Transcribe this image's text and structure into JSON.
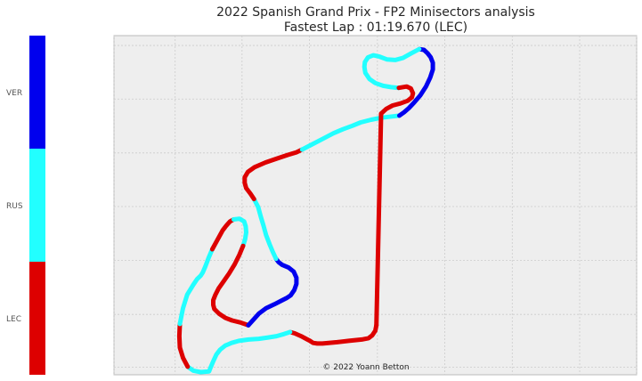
{
  "chart_data": {
    "type": "line",
    "title": "2022 Spanish Grand Prix - FP2 Minisectors analysis",
    "subtitle": "Fastest Lap : 01:19.670 (LEC)",
    "annotation": "© 2022 Yoann Betton",
    "grid": true,
    "legend_placement": "left colorbar",
    "colors": {
      "VER": "#0000ee",
      "RUS": "#22ffff",
      "LEC": "#dd0000",
      "plot_background": "#eeeeee",
      "grid": "#cccccc"
    },
    "legend": [
      {
        "driver": "VER",
        "color": "#0000ee"
      },
      {
        "driver": "RUS",
        "color": "#22ffff"
      },
      {
        "driver": "LEC",
        "color": "#dd0000"
      }
    ],
    "xlim": [
      0,
      1
    ],
    "ylim": [
      0,
      1
    ],
    "track_segments": [
      {
        "driver": "LEC",
        "points": [
          [
            0.502,
            0.146
          ],
          [
            0.5,
            0.13
          ],
          [
            0.494,
            0.116
          ],
          [
            0.487,
            0.108
          ],
          [
            0.474,
            0.104
          ],
          [
            0.449,
            0.1
          ],
          [
            0.427,
            0.096
          ],
          [
            0.399,
            0.092
          ],
          [
            0.389,
            0.092
          ],
          [
            0.381,
            0.094
          ],
          [
            0.375,
            0.1
          ],
          [
            0.37,
            0.104
          ],
          [
            0.358,
            0.114
          ],
          [
            0.346,
            0.122
          ],
          [
            0.337,
            0.126
          ]
        ]
      },
      {
        "driver": "RUS",
        "points": [
          [
            0.337,
            0.126
          ],
          [
            0.325,
            0.12
          ],
          [
            0.311,
            0.114
          ],
          [
            0.295,
            0.11
          ],
          [
            0.277,
            0.106
          ],
          [
            0.258,
            0.104
          ],
          [
            0.239,
            0.1
          ],
          [
            0.225,
            0.094
          ],
          [
            0.213,
            0.086
          ],
          [
            0.203,
            0.074
          ],
          [
            0.196,
            0.06
          ],
          [
            0.19,
            0.04
          ],
          [
            0.185,
            0.022
          ],
          [
            0.182,
            0.01
          ],
          [
            0.166,
            0.008
          ],
          [
            0.152,
            0.012
          ],
          [
            0.141,
            0.024
          ]
        ]
      },
      {
        "driver": "LEC",
        "points": [
          [
            0.141,
            0.024
          ],
          [
            0.132,
            0.05
          ],
          [
            0.126,
            0.08
          ],
          [
            0.125,
            0.114
          ],
          [
            0.126,
            0.15
          ]
        ]
      },
      {
        "driver": "RUS",
        "points": [
          [
            0.126,
            0.15
          ],
          [
            0.132,
            0.196
          ],
          [
            0.14,
            0.236
          ],
          [
            0.152,
            0.266
          ],
          [
            0.159,
            0.282
          ],
          [
            0.166,
            0.292
          ],
          [
            0.17,
            0.302
          ],
          [
            0.175,
            0.32
          ],
          [
            0.181,
            0.344
          ],
          [
            0.188,
            0.37
          ]
        ]
      },
      {
        "driver": "LEC",
        "points": [
          [
            0.188,
            0.37
          ],
          [
            0.198,
            0.398
          ],
          [
            0.208,
            0.426
          ],
          [
            0.215,
            0.44
          ],
          [
            0.222,
            0.452
          ],
          [
            0.229,
            0.458
          ]
        ]
      },
      {
        "driver": "RUS",
        "points": [
          [
            0.229,
            0.458
          ],
          [
            0.24,
            0.46
          ],
          [
            0.249,
            0.452
          ],
          [
            0.252,
            0.438
          ],
          [
            0.253,
            0.42
          ],
          [
            0.251,
            0.4
          ],
          [
            0.247,
            0.38
          ]
        ]
      },
      {
        "driver": "LEC",
        "points": [
          [
            0.247,
            0.38
          ],
          [
            0.24,
            0.354
          ],
          [
            0.231,
            0.326
          ],
          [
            0.22,
            0.298
          ],
          [
            0.21,
            0.276
          ],
          [
            0.2,
            0.254
          ],
          [
            0.194,
            0.236
          ],
          [
            0.19,
            0.22
          ],
          [
            0.19,
            0.206
          ],
          [
            0.192,
            0.194
          ],
          [
            0.201,
            0.18
          ],
          [
            0.213,
            0.168
          ],
          [
            0.226,
            0.16
          ],
          [
            0.242,
            0.154
          ],
          [
            0.257,
            0.146
          ]
        ]
      },
      {
        "driver": "VER",
        "points": [
          [
            0.257,
            0.146
          ],
          [
            0.277,
            0.18
          ],
          [
            0.291,
            0.196
          ],
          [
            0.307,
            0.208
          ],
          [
            0.32,
            0.218
          ],
          [
            0.33,
            0.226
          ],
          [
            0.338,
            0.234
          ],
          [
            0.345,
            0.25
          ],
          [
            0.349,
            0.268
          ],
          [
            0.349,
            0.286
          ],
          [
            0.344,
            0.304
          ],
          [
            0.334,
            0.316
          ],
          [
            0.322,
            0.324
          ],
          [
            0.315,
            0.332
          ],
          [
            0.31,
            0.342
          ]
        ]
      },
      {
        "driver": "RUS",
        "points": [
          [
            0.31,
            0.342
          ],
          [
            0.304,
            0.362
          ],
          [
            0.298,
            0.384
          ],
          [
            0.291,
            0.412
          ],
          [
            0.286,
            0.44
          ],
          [
            0.281,
            0.466
          ],
          [
            0.276,
            0.494
          ],
          [
            0.268,
            0.518
          ]
        ]
      },
      {
        "driver": "LEC",
        "points": [
          [
            0.268,
            0.518
          ],
          [
            0.261,
            0.534
          ],
          [
            0.253,
            0.55
          ],
          [
            0.25,
            0.566
          ],
          [
            0.25,
            0.582
          ],
          [
            0.256,
            0.598
          ],
          [
            0.269,
            0.612
          ],
          [
            0.29,
            0.626
          ],
          [
            0.313,
            0.638
          ],
          [
            0.332,
            0.648
          ],
          [
            0.349,
            0.656
          ],
          [
            0.36,
            0.664
          ]
        ]
      },
      {
        "driver": "RUS",
        "points": [
          [
            0.36,
            0.664
          ],
          [
            0.38,
            0.68
          ],
          [
            0.4,
            0.696
          ],
          [
            0.42,
            0.712
          ],
          [
            0.438,
            0.724
          ],
          [
            0.456,
            0.734
          ],
          [
            0.472,
            0.744
          ],
          [
            0.492,
            0.752
          ],
          [
            0.512,
            0.758
          ],
          [
            0.534,
            0.762
          ],
          [
            0.546,
            0.764
          ]
        ]
      },
      {
        "driver": "VER",
        "points": [
          [
            0.546,
            0.764
          ],
          [
            0.555,
            0.774
          ],
          [
            0.564,
            0.786
          ],
          [
            0.574,
            0.802
          ],
          [
            0.586,
            0.824
          ],
          [
            0.597,
            0.85
          ],
          [
            0.605,
            0.876
          ],
          [
            0.61,
            0.9
          ],
          [
            0.61,
            0.92
          ],
          [
            0.606,
            0.936
          ],
          [
            0.6,
            0.948
          ],
          [
            0.593,
            0.958
          ],
          [
            0.584,
            0.96
          ]
        ]
      },
      {
        "driver": "RUS",
        "points": [
          [
            0.584,
            0.96
          ],
          [
            0.569,
            0.948
          ],
          [
            0.553,
            0.934
          ],
          [
            0.538,
            0.928
          ],
          [
            0.522,
            0.93
          ],
          [
            0.508,
            0.938
          ],
          [
            0.496,
            0.942
          ],
          [
            0.486,
            0.936
          ],
          [
            0.48,
            0.922
          ],
          [
            0.479,
            0.908
          ],
          [
            0.481,
            0.89
          ],
          [
            0.489,
            0.872
          ],
          [
            0.5,
            0.86
          ],
          [
            0.515,
            0.852
          ],
          [
            0.53,
            0.848
          ],
          [
            0.545,
            0.846
          ]
        ]
      },
      {
        "driver": "LEC",
        "points": [
          [
            0.545,
            0.846
          ],
          [
            0.56,
            0.85
          ],
          [
            0.568,
            0.844
          ],
          [
            0.572,
            0.83
          ],
          [
            0.57,
            0.818
          ],
          [
            0.562,
            0.808
          ],
          [
            0.548,
            0.8
          ],
          [
            0.533,
            0.794
          ],
          [
            0.521,
            0.784
          ],
          [
            0.511,
            0.77
          ],
          [
            0.502,
            0.146
          ]
        ]
      }
    ]
  },
  "page": {
    "title": "2022 Spanish Grand Prix - FP2 Minisectors analysis",
    "subtitle": "Fastest Lap : 01:19.670 (LEC)",
    "copyright": "© 2022 Yoann Betton"
  }
}
